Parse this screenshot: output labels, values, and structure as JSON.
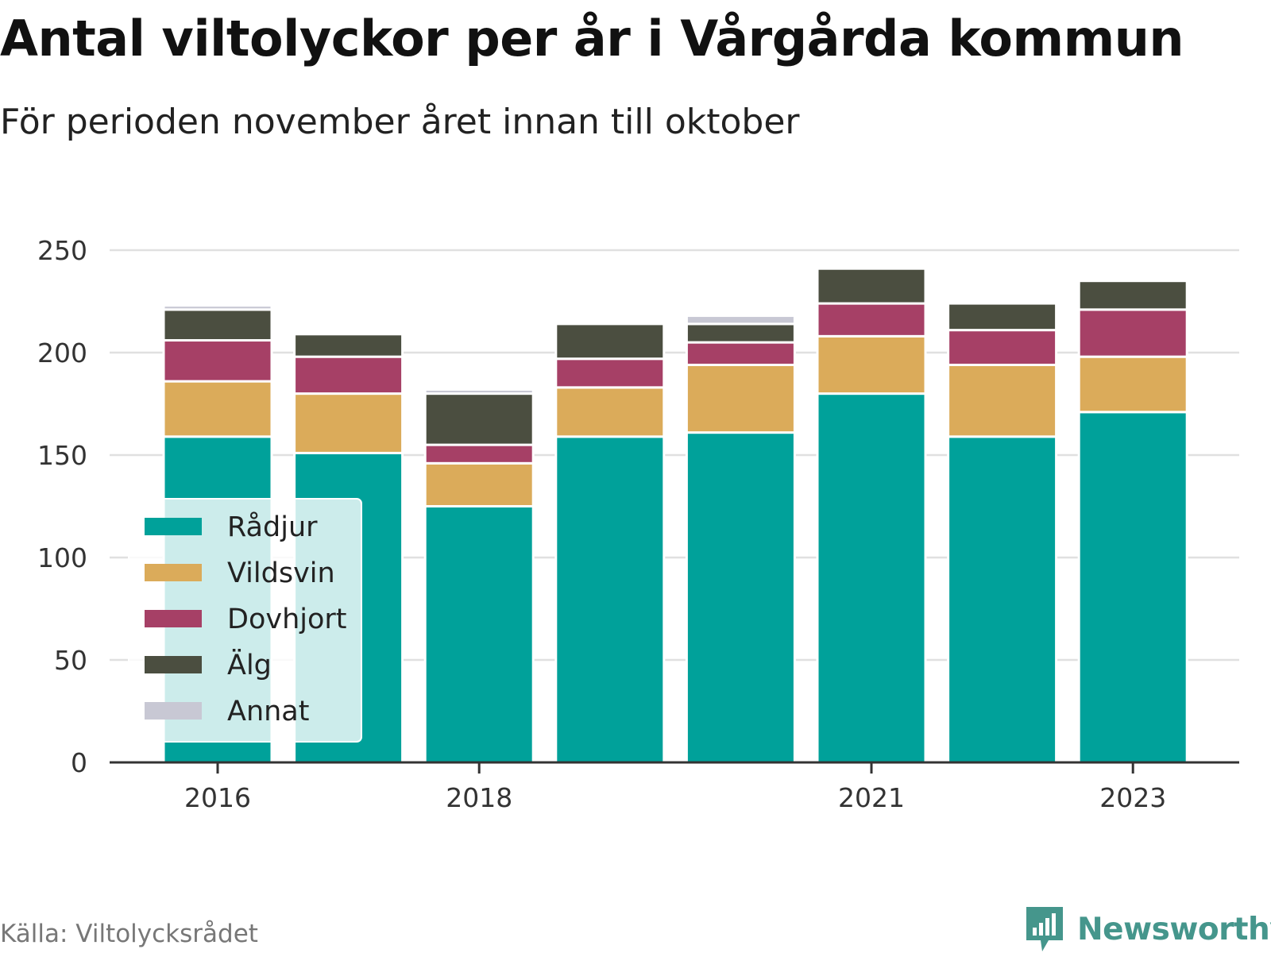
{
  "chart_data": {
    "type": "bar",
    "stacked": true,
    "title": "Antal viltolyckor per år i Vårgårda kommun",
    "subtitle": "För perioden november året innan till oktober",
    "categories": [
      2016,
      2017,
      2018,
      2019,
      2020,
      2021,
      2022,
      2023
    ],
    "x_tick_labels": [
      "2016",
      "2018",
      "2021",
      "2023"
    ],
    "x_tick_values": [
      2016,
      2018,
      2021,
      2023
    ],
    "y_ticks": [
      0,
      50,
      100,
      150,
      200,
      250
    ],
    "ylim": [
      0,
      250
    ],
    "grid": true,
    "legend_position": "bottom-left inside plot",
    "series": [
      {
        "name": "Rådjur",
        "color": "#00a19a",
        "values": [
          159,
          151,
          125,
          159,
          161,
          180,
          159,
          171
        ]
      },
      {
        "name": "Vildsvin",
        "color": "#dbab5a",
        "values": [
          27,
          29,
          21,
          24,
          33,
          28,
          35,
          27
        ]
      },
      {
        "name": "Dovhjort",
        "color": "#a64066",
        "values": [
          20,
          18,
          9,
          14,
          11,
          16,
          17,
          23
        ]
      },
      {
        "name": "Älg",
        "color": "#4b4e40",
        "values": [
          15,
          11,
          25,
          17,
          9,
          17,
          13,
          14
        ]
      },
      {
        "name": "Annat",
        "color": "#c8c8d4",
        "values": [
          2,
          0,
          2,
          0,
          4,
          0,
          0,
          0
        ]
      }
    ]
  },
  "footer": {
    "source": "Källa: Viltolycksrådet",
    "brand": "Newsworthy"
  },
  "colors": {
    "grid": "#e0e0e0",
    "axis": "#333333",
    "legend_background": "#ffffff",
    "brand": "#45968c"
  }
}
